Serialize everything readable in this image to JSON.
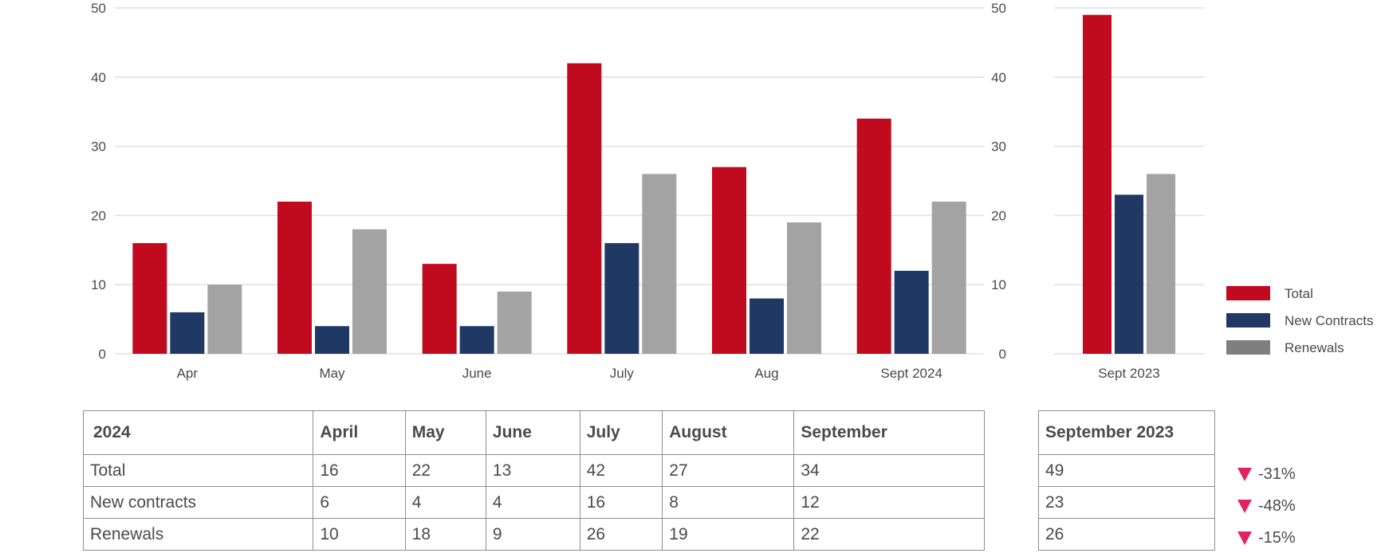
{
  "chart_data": [
    {
      "type": "bar",
      "categories": [
        "Apr",
        "May",
        "June",
        "July",
        "Aug",
        "Sept 2024"
      ],
      "series": [
        {
          "name": "Total",
          "values": [
            16,
            22,
            13,
            42,
            27,
            34
          ]
        },
        {
          "name": "New Contracts",
          "values": [
            6,
            4,
            4,
            16,
            8,
            12
          ]
        },
        {
          "name": "Renewals",
          "values": [
            10,
            18,
            9,
            26,
            19,
            22
          ]
        }
      ],
      "ylim": [
        0,
        50
      ],
      "yticks": [
        "0",
        "10",
        "20",
        "30",
        "40",
        "50"
      ],
      "grid": true,
      "xlabel": "",
      "ylabel": ""
    },
    {
      "type": "bar",
      "categories": [
        "Sept 2023"
      ],
      "series": [
        {
          "name": "Total",
          "values": [
            49
          ]
        },
        {
          "name": "New Contracts",
          "values": [
            23
          ]
        },
        {
          "name": "Renewals",
          "values": [
            26
          ]
        }
      ],
      "ylim": [
        0,
        50
      ],
      "yticks": [
        "0",
        "10",
        "20",
        "30",
        "40",
        "50"
      ],
      "grid": true,
      "xlabel": "",
      "ylabel": ""
    }
  ],
  "colors": {
    "Total": "#c00a1e",
    "New Contracts": "#1f3864",
    "Renewals": "#a3a3a3",
    "legend_Renewals": "#7f7f7f",
    "down_arrow": "#e0245e",
    "grid": "#e0e0e0"
  },
  "legend": {
    "position": "right",
    "items": [
      {
        "label": "Total",
        "color": "#c00a1e"
      },
      {
        "label": "New Contracts",
        "color": "#1f3864"
      },
      {
        "label": "Renewals",
        "color": "#7f7f7f"
      }
    ]
  },
  "table": {
    "headers": [
      "2024",
      "April",
      "May",
      "June",
      "July",
      "August",
      "September"
    ],
    "rows": [
      [
        "Total",
        "16",
        "22",
        "13",
        "42",
        "27",
        "34"
      ],
      [
        "New contracts",
        "6",
        "4",
        "4",
        "16",
        "8",
        "12"
      ],
      [
        "Renewals",
        "10",
        "18",
        "9",
        "26",
        "19",
        "22"
      ]
    ]
  },
  "side_table": {
    "header": "September 2023",
    "rows": [
      "49",
      "23",
      "26"
    ]
  },
  "changes": [
    {
      "icon": "down-triangle-icon",
      "text": "-31%"
    },
    {
      "icon": "down-triangle-icon",
      "text": "-48%"
    },
    {
      "icon": "down-triangle-icon",
      "text": "-15%"
    }
  ]
}
